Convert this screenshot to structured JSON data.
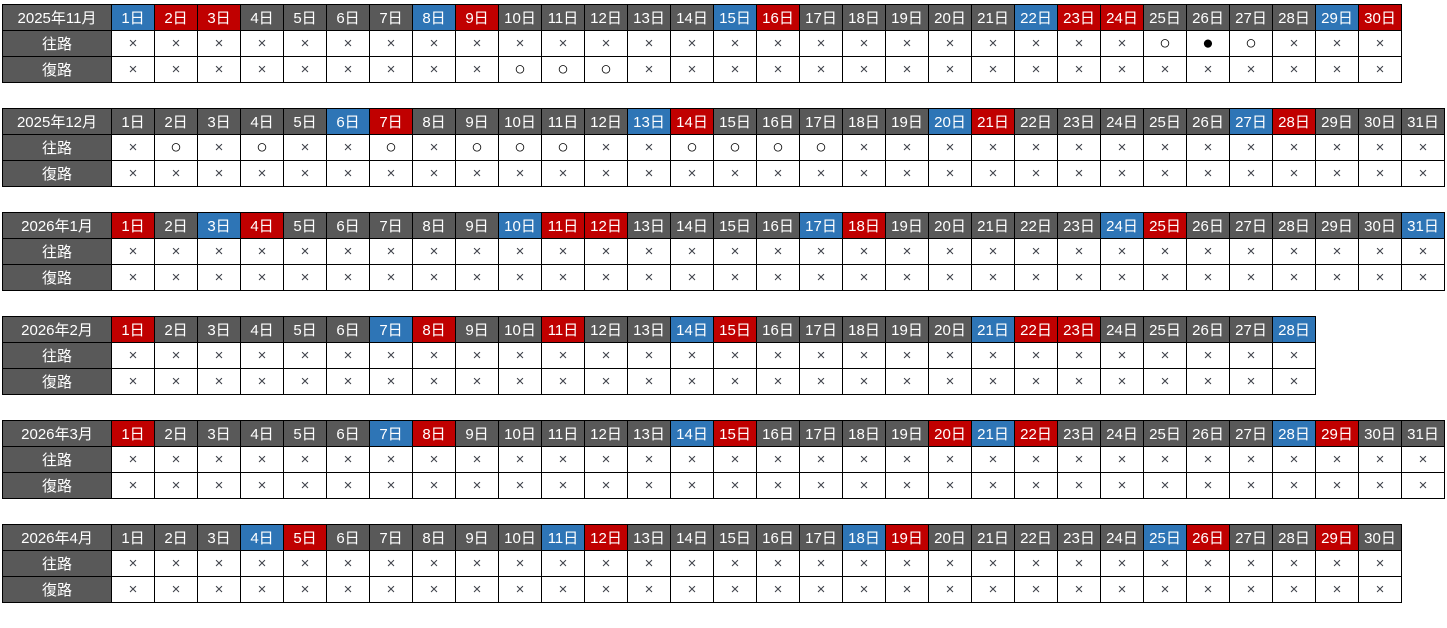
{
  "table_type": "travel-availability-calendar",
  "row_labels": {
    "outbound": "往路",
    "return": "復路"
  },
  "symbols": {
    "unavailable": "×",
    "available": "○",
    "full": "●"
  },
  "colors": {
    "weekday_header": "#595959",
    "saturday_header": "#2e75b6",
    "sunday_holiday_header": "#c00000",
    "header_text": "#ffffff",
    "cell_background": "#ffffff",
    "unavailable_symbol_color": "#41444c",
    "border": "#000000"
  },
  "day_labels": [
    "1日",
    "2日",
    "3日",
    "4日",
    "5日",
    "6日",
    "7日",
    "8日",
    "9日",
    "10日",
    "11日",
    "12日",
    "13日",
    "14日",
    "15日",
    "16日",
    "17日",
    "18日",
    "19日",
    "20日",
    "21日",
    "22日",
    "23日",
    "24日",
    "25日",
    "26日",
    "27日",
    "28日",
    "29日",
    "30日",
    "31日"
  ],
  "months": [
    {
      "label": "2025年11月",
      "days": 30,
      "day_types": [
        "blue",
        "red",
        "red",
        "gray",
        "gray",
        "gray",
        "gray",
        "blue",
        "red",
        "gray",
        "gray",
        "gray",
        "gray",
        "gray",
        "blue",
        "red",
        "gray",
        "gray",
        "gray",
        "gray",
        "gray",
        "blue",
        "red",
        "red",
        "gray",
        "gray",
        "gray",
        "gray",
        "blue",
        "red"
      ],
      "outbound": [
        "×",
        "×",
        "×",
        "×",
        "×",
        "×",
        "×",
        "×",
        "×",
        "×",
        "×",
        "×",
        "×",
        "×",
        "×",
        "×",
        "×",
        "×",
        "×",
        "×",
        "×",
        "×",
        "×",
        "×",
        "○",
        "●",
        "○",
        "×",
        "×",
        "×"
      ],
      "return": [
        "×",
        "×",
        "×",
        "×",
        "×",
        "×",
        "×",
        "×",
        "×",
        "○",
        "○",
        "○",
        "×",
        "×",
        "×",
        "×",
        "×",
        "×",
        "×",
        "×",
        "×",
        "×",
        "×",
        "×",
        "×",
        "×",
        "×",
        "×",
        "×",
        "×"
      ]
    },
    {
      "label": "2025年12月",
      "days": 31,
      "day_types": [
        "gray",
        "gray",
        "gray",
        "gray",
        "gray",
        "blue",
        "red",
        "gray",
        "gray",
        "gray",
        "gray",
        "gray",
        "blue",
        "red",
        "gray",
        "gray",
        "gray",
        "gray",
        "gray",
        "blue",
        "red",
        "gray",
        "gray",
        "gray",
        "gray",
        "gray",
        "blue",
        "red",
        "gray",
        "gray",
        "gray"
      ],
      "outbound": [
        "×",
        "○",
        "×",
        "○",
        "×",
        "×",
        "○",
        "×",
        "○",
        "○",
        "○",
        "×",
        "×",
        "○",
        "○",
        "○",
        "○",
        "×",
        "×",
        "×",
        "×",
        "×",
        "×",
        "×",
        "×",
        "×",
        "×",
        "×",
        "×",
        "×",
        "×"
      ],
      "return": [
        "×",
        "×",
        "×",
        "×",
        "×",
        "×",
        "×",
        "×",
        "×",
        "×",
        "×",
        "×",
        "×",
        "×",
        "×",
        "×",
        "×",
        "×",
        "×",
        "×",
        "×",
        "×",
        "×",
        "×",
        "×",
        "×",
        "×",
        "×",
        "×",
        "×",
        "×"
      ]
    },
    {
      "label": "2026年1月",
      "days": 31,
      "day_types": [
        "red",
        "gray",
        "blue",
        "red",
        "gray",
        "gray",
        "gray",
        "gray",
        "gray",
        "blue",
        "red",
        "red",
        "gray",
        "gray",
        "gray",
        "gray",
        "blue",
        "red",
        "gray",
        "gray",
        "gray",
        "gray",
        "gray",
        "blue",
        "red",
        "gray",
        "gray",
        "gray",
        "gray",
        "gray",
        "blue"
      ],
      "outbound": [
        "×",
        "×",
        "×",
        "×",
        "×",
        "×",
        "×",
        "×",
        "×",
        "×",
        "×",
        "×",
        "×",
        "×",
        "×",
        "×",
        "×",
        "×",
        "×",
        "×",
        "×",
        "×",
        "×",
        "×",
        "×",
        "×",
        "×",
        "×",
        "×",
        "×",
        "×"
      ],
      "return": [
        "×",
        "×",
        "×",
        "×",
        "×",
        "×",
        "×",
        "×",
        "×",
        "×",
        "×",
        "×",
        "×",
        "×",
        "×",
        "×",
        "×",
        "×",
        "×",
        "×",
        "×",
        "×",
        "×",
        "×",
        "×",
        "×",
        "×",
        "×",
        "×",
        "×",
        "×"
      ]
    },
    {
      "label": "2026年2月",
      "days": 28,
      "day_types": [
        "red",
        "gray",
        "gray",
        "gray",
        "gray",
        "gray",
        "blue",
        "red",
        "gray",
        "gray",
        "red",
        "gray",
        "gray",
        "blue",
        "red",
        "gray",
        "gray",
        "gray",
        "gray",
        "gray",
        "blue",
        "red",
        "red",
        "gray",
        "gray",
        "gray",
        "gray",
        "blue"
      ],
      "outbound": [
        "×",
        "×",
        "×",
        "×",
        "×",
        "×",
        "×",
        "×",
        "×",
        "×",
        "×",
        "×",
        "×",
        "×",
        "×",
        "×",
        "×",
        "×",
        "×",
        "×",
        "×",
        "×",
        "×",
        "×",
        "×",
        "×",
        "×",
        "×"
      ],
      "return": [
        "×",
        "×",
        "×",
        "×",
        "×",
        "×",
        "×",
        "×",
        "×",
        "×",
        "×",
        "×",
        "×",
        "×",
        "×",
        "×",
        "×",
        "×",
        "×",
        "×",
        "×",
        "×",
        "×",
        "×",
        "×",
        "×",
        "×",
        "×"
      ]
    },
    {
      "label": "2026年3月",
      "days": 31,
      "day_types": [
        "red",
        "gray",
        "gray",
        "gray",
        "gray",
        "gray",
        "blue",
        "red",
        "gray",
        "gray",
        "gray",
        "gray",
        "gray",
        "blue",
        "red",
        "gray",
        "gray",
        "gray",
        "gray",
        "red",
        "blue",
        "red",
        "gray",
        "gray",
        "gray",
        "gray",
        "gray",
        "blue",
        "red",
        "gray",
        "gray"
      ],
      "outbound": [
        "×",
        "×",
        "×",
        "×",
        "×",
        "×",
        "×",
        "×",
        "×",
        "×",
        "×",
        "×",
        "×",
        "×",
        "×",
        "×",
        "×",
        "×",
        "×",
        "×",
        "×",
        "×",
        "×",
        "×",
        "×",
        "×",
        "×",
        "×",
        "×",
        "×",
        "×"
      ],
      "return": [
        "×",
        "×",
        "×",
        "×",
        "×",
        "×",
        "×",
        "×",
        "×",
        "×",
        "×",
        "×",
        "×",
        "×",
        "×",
        "×",
        "×",
        "×",
        "×",
        "×",
        "×",
        "×",
        "×",
        "×",
        "×",
        "×",
        "×",
        "×",
        "×",
        "×",
        "×"
      ]
    },
    {
      "label": "2026年4月",
      "days": 30,
      "day_types": [
        "gray",
        "gray",
        "gray",
        "blue",
        "red",
        "gray",
        "gray",
        "gray",
        "gray",
        "gray",
        "blue",
        "red",
        "gray",
        "gray",
        "gray",
        "gray",
        "gray",
        "blue",
        "red",
        "gray",
        "gray",
        "gray",
        "gray",
        "gray",
        "blue",
        "red",
        "gray",
        "gray",
        "red",
        "gray"
      ],
      "outbound": [
        "×",
        "×",
        "×",
        "×",
        "×",
        "×",
        "×",
        "×",
        "×",
        "×",
        "×",
        "×",
        "×",
        "×",
        "×",
        "×",
        "×",
        "×",
        "×",
        "×",
        "×",
        "×",
        "×",
        "×",
        "×",
        "×",
        "×",
        "×",
        "×",
        "×"
      ],
      "return": [
        "×",
        "×",
        "×",
        "×",
        "×",
        "×",
        "×",
        "×",
        "×",
        "×",
        "×",
        "×",
        "×",
        "×",
        "×",
        "×",
        "×",
        "×",
        "×",
        "×",
        "×",
        "×",
        "×",
        "×",
        "×",
        "×",
        "×",
        "×",
        "×",
        "×"
      ]
    }
  ]
}
